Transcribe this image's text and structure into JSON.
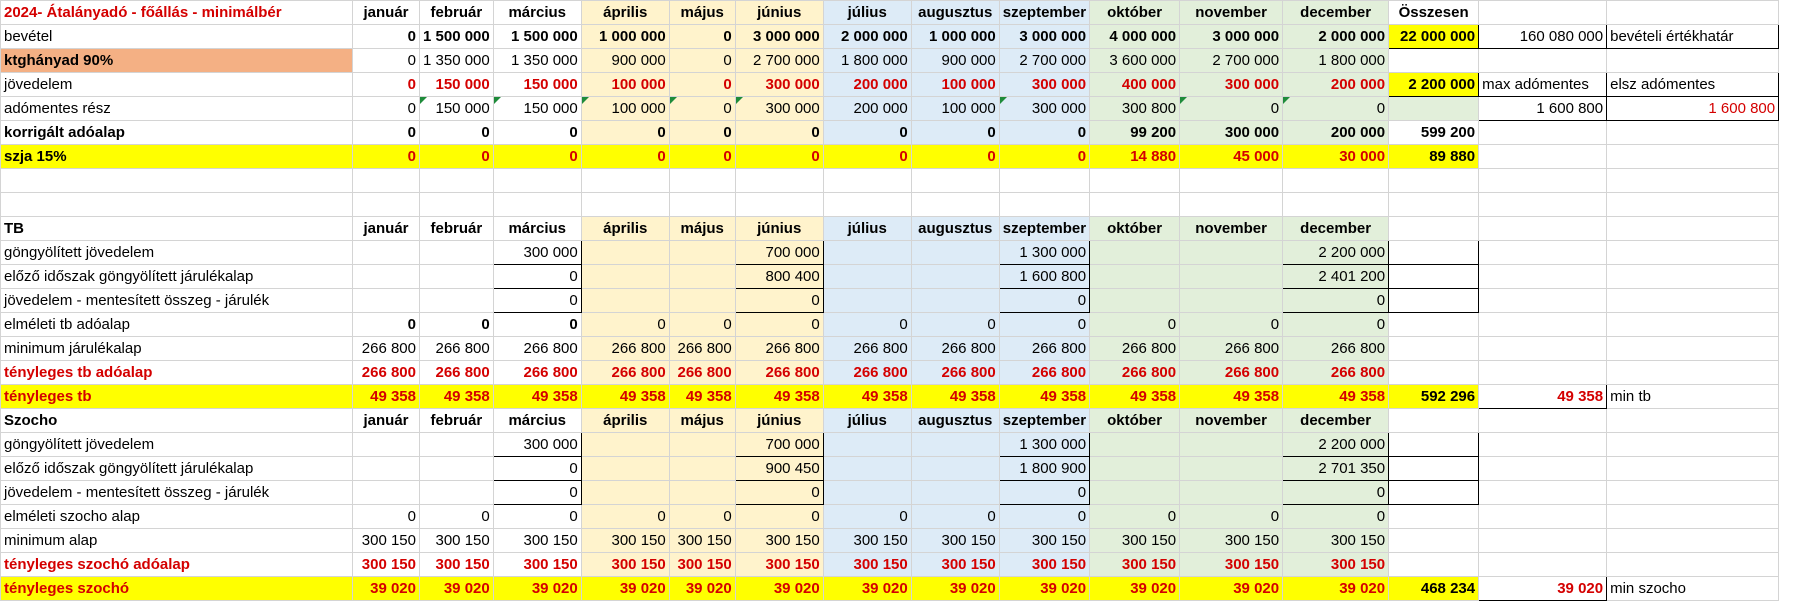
{
  "months": [
    "január",
    "február",
    "március",
    "április",
    "május",
    "június",
    "július",
    "augusztus",
    "szeptember",
    "október",
    "november",
    "december"
  ],
  "s1": {
    "title": "2024- Átalányadó - főállás - minimálbér",
    "total_label": "Összesen",
    "rows": [
      {
        "label": "bevétel",
        "vals": [
          "0",
          "1 500 000",
          "1 500 000",
          "1 000 000",
          "0",
          "3 000 000",
          "2 000 000",
          "1 000 000",
          "3 000 000",
          "4 000 000",
          "3 000 000",
          "2 000 000"
        ],
        "total": "22 000 000",
        "x1": "160 080 000",
        "x2": "bevételi értékhatár"
      },
      {
        "label": "ktghányad 90%",
        "vals": [
          "0",
          "1 350 000",
          "1 350 000",
          "900 000",
          "0",
          "2 700 000",
          "1 800 000",
          "900 000",
          "2 700 000",
          "3 600 000",
          "2 700 000",
          "1 800 000"
        ],
        "total": "",
        "x1": "",
        "x2": ""
      },
      {
        "label": "jövedelem",
        "vals": [
          "0",
          "150 000",
          "150 000",
          "100 000",
          "0",
          "300 000",
          "200 000",
          "100 000",
          "300 000",
          "400 000",
          "300 000",
          "200 000"
        ],
        "total": "2 200 000",
        "x1": "max adómentes",
        "x2": "elsz adómentes"
      },
      {
        "label": "adómentes rész",
        "vals": [
          "0",
          "150 000",
          "150 000",
          "100 000",
          "0",
          "300 000",
          "200 000",
          "100 000",
          "300 000",
          "300 800",
          "0",
          "0"
        ],
        "total": "",
        "x1": "1 600 800",
        "x2": "1 600 800"
      },
      {
        "label": "korrigált adóalap",
        "vals": [
          "0",
          "0",
          "0",
          "0",
          "0",
          "0",
          "0",
          "0",
          "0",
          "99 200",
          "300 000",
          "200 000"
        ],
        "total": "599 200",
        "x1": "",
        "x2": ""
      },
      {
        "label": "szja 15%",
        "vals": [
          "0",
          "0",
          "0",
          "0",
          "0",
          "0",
          "0",
          "0",
          "0",
          "14 880",
          "45 000",
          "30 000"
        ],
        "total": "89 880",
        "x1": "",
        "x2": ""
      }
    ]
  },
  "tb": {
    "title": "TB",
    "rows": [
      {
        "label": "göngyölített jövedelem",
        "vals": [
          "",
          "",
          "300 000",
          "",
          "",
          "700 000",
          "",
          "",
          "1 300 000",
          "",
          "",
          "2 200 000"
        ]
      },
      {
        "label": "előző időszak göngyölített járulékalap",
        "vals": [
          "",
          "",
          "0",
          "",
          "",
          "800 400",
          "",
          "",
          "1 600 800",
          "",
          "",
          "2 401 200"
        ]
      },
      {
        "label": "jövedelem - mentesített összeg - járulék",
        "vals": [
          "",
          "",
          "0",
          "",
          "",
          "0",
          "",
          "",
          "0",
          "",
          "",
          "0"
        ]
      },
      {
        "label": "elméleti tb adóalap",
        "vals": [
          "0",
          "0",
          "0",
          "0",
          "0",
          "0",
          "0",
          "0",
          "0",
          "0",
          "0",
          "0"
        ]
      },
      {
        "label": "minimum járulékalap",
        "vals": [
          "266 800",
          "266 800",
          "266 800",
          "266 800",
          "266 800",
          "266 800",
          "266 800",
          "266 800",
          "266 800",
          "266 800",
          "266 800",
          "266 800"
        ]
      },
      {
        "label": "tényleges tb adóalap",
        "vals": [
          "266 800",
          "266 800",
          "266 800",
          "266 800",
          "266 800",
          "266 800",
          "266 800",
          "266 800",
          "266 800",
          "266 800",
          "266 800",
          "266 800"
        ]
      },
      {
        "label": "tényleges tb",
        "vals": [
          "49 358",
          "49 358",
          "49 358",
          "49 358",
          "49 358",
          "49 358",
          "49 358",
          "49 358",
          "49 358",
          "49 358",
          "49 358",
          "49 358"
        ],
        "total": "592 296",
        "x1": "49 358",
        "x2": "min tb"
      }
    ]
  },
  "szocho": {
    "title": "Szocho",
    "rows": [
      {
        "label": "göngyölített jövedelem",
        "vals": [
          "",
          "",
          "300 000",
          "",
          "",
          "700 000",
          "",
          "",
          "1 300 000",
          "",
          "",
          "2 200 000"
        ]
      },
      {
        "label": "előző időszak göngyölített járulékalap",
        "vals": [
          "",
          "",
          "0",
          "",
          "",
          "900 450",
          "",
          "",
          "1 800 900",
          "",
          "",
          "2 701 350"
        ]
      },
      {
        "label": "jövedelem - mentesített összeg - járulék",
        "vals": [
          "",
          "",
          "0",
          "",
          "",
          "0",
          "",
          "",
          "0",
          "",
          "",
          "0"
        ]
      },
      {
        "label": "elméleti szocho alap",
        "vals": [
          "0",
          "0",
          "0",
          "0",
          "0",
          "0",
          "0",
          "0",
          "0",
          "0",
          "0",
          "0"
        ]
      },
      {
        "label": "minimum alap",
        "vals": [
          "300 150",
          "300 150",
          "300 150",
          "300 150",
          "300 150",
          "300 150",
          "300 150",
          "300 150",
          "300 150",
          "300 150",
          "300 150",
          "300 150"
        ]
      },
      {
        "label": "tényleges szochó adóalap",
        "vals": [
          "300 150",
          "300 150",
          "300 150",
          "300 150",
          "300 150",
          "300 150",
          "300 150",
          "300 150",
          "300 150",
          "300 150",
          "300 150",
          "300 150"
        ]
      },
      {
        "label": "tényleges szochó",
        "vals": [
          "39 020",
          "39 020",
          "39 020",
          "39 020",
          "39 020",
          "39 020",
          "39 020",
          "39 020",
          "39 020",
          "39 020",
          "39 020",
          "39 020"
        ],
        "total": "468 234",
        "x1": "39 020",
        "x2": "min szocho"
      }
    ]
  },
  "colors": {
    "q2": "#fff3cc",
    "q3": "#ddebf7",
    "q4": "#e2efda",
    "yellow": "#ffff00",
    "orange": "#f4b084",
    "red": "#d40000"
  }
}
